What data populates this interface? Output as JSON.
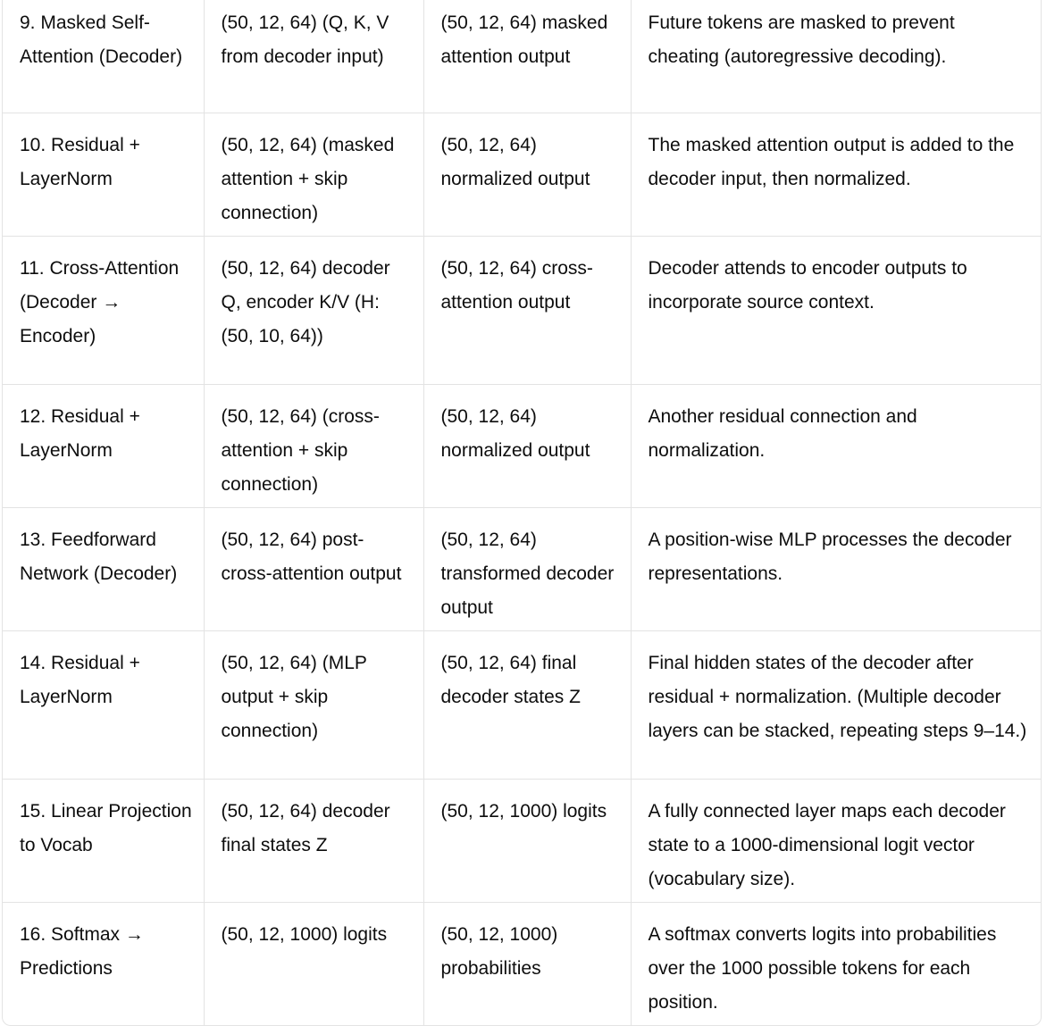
{
  "table": {
    "rows": [
      {
        "step": "9. Masked Self-Attention (Decoder)",
        "input": "(50, 12, 64) (Q, K, V from decoder input)",
        "output": "(50, 12, 64) masked attention output",
        "description": "Future tokens are masked to prevent cheating (autoregressive decoding)."
      },
      {
        "step": "10. Residual + LayerNorm",
        "input": "(50, 12, 64) (masked attention + skip connection)",
        "output": "(50, 12, 64) normalized output",
        "description": "The masked attention output is added to the decoder input, then normalized."
      },
      {
        "step": "11. Cross-Attention (Decoder → Encoder)",
        "input": "(50, 12, 64) decoder Q, encoder K/V (H: (50, 10, 64))",
        "output": "(50, 12, 64) cross-attention output",
        "description": "Decoder attends to encoder outputs to incorporate source context."
      },
      {
        "step": "12. Residual + LayerNorm",
        "input": "(50, 12, 64) (cross-attention + skip connection)",
        "output": "(50, 12, 64) normalized output",
        "description": "Another residual connection and normalization."
      },
      {
        "step": "13. Feedforward Network (Decoder)",
        "input": "(50, 12, 64) post-cross-attention output",
        "output": "(50, 12, 64) transformed decoder output",
        "description": "A position-wise MLP processes the decoder representations."
      },
      {
        "step": "14. Residual + LayerNorm",
        "input": "(50, 12, 64) (MLP output + skip connection)",
        "output": "(50, 12, 64) final decoder states Z",
        "description": "Final hidden states of the decoder after residual + normalization. (Multiple decoder layers can be stacked, repeating steps 9–14.)"
      },
      {
        "step": "15. Linear Projection to Vocab",
        "input": "(50, 12, 64) decoder final states Z",
        "output": "(50, 12, 1000) logits",
        "description": "A fully connected layer maps each decoder state to a 1000-dimensional logit vector (vocabulary size)."
      },
      {
        "step": "16. Softmax → Predictions",
        "input": "(50, 12, 1000) logits",
        "output": "(50, 12, 1000) probabilities",
        "description": "A softmax converts logits into probabilities over the 1000 possible tokens for each position."
      }
    ]
  }
}
